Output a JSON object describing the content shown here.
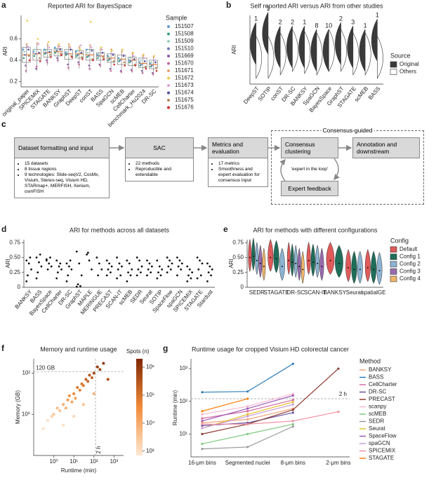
{
  "chart_data": [
    {
      "panel": "a",
      "type": "box",
      "title": "Reported ARI for BayesSpace",
      "ylabel": "ARI",
      "categories": [
        "original_paper",
        "SPICEMIX",
        "STAGATE",
        "BANKSY",
        "GraphST",
        "DeepST",
        "conST",
        "BASS",
        "SpaGCN",
        "scMEB",
        "CellCharter",
        "benchmark_Hu2024",
        "DR-SC"
      ],
      "boxes": {
        "min": [
          0.28,
          0.3,
          0.35,
          0.38,
          0.3,
          0.32,
          0.3,
          0.33,
          0.3,
          0.28,
          0.28,
          0.27,
          0.25
        ],
        "q1": [
          0.38,
          0.4,
          0.43,
          0.44,
          0.41,
          0.42,
          0.4,
          0.4,
          0.38,
          0.36,
          0.35,
          0.33,
          0.32
        ],
        "median": [
          0.45,
          0.46,
          0.47,
          0.48,
          0.46,
          0.46,
          0.45,
          0.44,
          0.42,
          0.41,
          0.4,
          0.37,
          0.36
        ],
        "q3": [
          0.52,
          0.5,
          0.5,
          0.51,
          0.5,
          0.49,
          0.5,
          0.47,
          0.46,
          0.45,
          0.43,
          0.42,
          0.4
        ],
        "max": [
          0.55,
          0.56,
          0.56,
          0.55,
          0.55,
          0.54,
          0.54,
          0.52,
          0.5,
          0.5,
          0.48,
          0.46,
          0.44
        ]
      },
      "legend_title": "Sample",
      "series": [
        {
          "name": "151507",
          "color": "#5b9bd5",
          "values": [
            0.5,
            0.48,
            0.5,
            0.52,
            0.47,
            0.48,
            0.5,
            0.45,
            0.44,
            0.42,
            0.4,
            0.38,
            0.37
          ]
        },
        {
          "name": "151508",
          "color": "#3aa17e",
          "values": [
            0.42,
            0.44,
            0.46,
            0.47,
            0.45,
            0.44,
            0.43,
            0.42,
            0.4,
            0.39,
            0.38,
            0.35,
            0.34
          ]
        },
        {
          "name": "151509",
          "color": "#9bd3c0",
          "values": [
            0.48,
            0.5,
            0.49,
            0.5,
            0.48,
            0.49,
            0.47,
            0.46,
            0.43,
            0.41,
            0.42,
            0.4,
            0.38
          ]
        },
        {
          "name": "151510",
          "color": "#6a7fb8",
          "values": [
            0.45,
            0.46,
            0.47,
            0.49,
            0.46,
            0.45,
            0.44,
            0.44,
            0.41,
            0.4,
            0.39,
            0.36,
            0.35
          ]
        },
        {
          "name": "151669",
          "color": "#8a5fa8",
          "values": [
            0.35,
            0.32,
            0.4,
            0.42,
            0.36,
            0.38,
            0.35,
            0.36,
            0.32,
            0.3,
            0.31,
            0.3,
            0.28
          ]
        },
        {
          "name": "151670",
          "color": "#c46a9a",
          "values": [
            0.3,
            0.34,
            0.38,
            0.4,
            0.33,
            0.36,
            0.32,
            0.35,
            0.3,
            0.29,
            0.3,
            0.28,
            0.27
          ]
        },
        {
          "name": "151671",
          "color": "#e8a36b",
          "values": [
            0.55,
            0.56,
            0.54,
            0.53,
            0.55,
            0.52,
            0.54,
            0.5,
            0.5,
            0.48,
            0.46,
            0.44,
            0.43
          ]
        },
        {
          "name": "151672",
          "color": "#f2c94c",
          "values": [
            0.77,
            0.6,
            0.57,
            0.55,
            0.53,
            0.5,
            0.76,
            0.52,
            0.49,
            0.5,
            0.47,
            0.45,
            0.44
          ]
        },
        {
          "name": "151673",
          "color": "#d9a3d9",
          "values": [
            0.53,
            0.55,
            0.52,
            0.53,
            0.52,
            0.54,
            0.52,
            0.5,
            0.46,
            0.45,
            0.44,
            0.42,
            0.4
          ]
        },
        {
          "name": "151674",
          "color": "#4f4f9e",
          "values": [
            0.5,
            0.47,
            0.48,
            0.5,
            0.5,
            0.47,
            0.49,
            0.47,
            0.45,
            0.44,
            0.41,
            0.39,
            0.38
          ]
        },
        {
          "name": "151675",
          "color": "#b58a5a",
          "values": [
            0.44,
            0.42,
            0.45,
            0.46,
            0.44,
            0.43,
            0.41,
            0.43,
            0.39,
            0.38,
            0.36,
            0.34,
            0.33
          ]
        },
        {
          "name": "151676",
          "color": "#d62d2d",
          "values": [
            0.4,
            0.39,
            0.43,
            0.45,
            0.43,
            0.41,
            0.4,
            0.41,
            0.36,
            0.35,
            0.35,
            0.32,
            0.3
          ]
        }
      ],
      "ylim": [
        0.15,
        0.82
      ],
      "yticks": [
        0.2,
        0.4,
        0.6
      ]
    },
    {
      "panel": "b",
      "type": "split-violin",
      "title": "Self reported ARI versus ARI from other studies",
      "ylabel": "ARI",
      "categories": [
        "DeepST",
        "SOTIP",
        "conST",
        "DR-SC",
        "BANKSY",
        "SpaGCN",
        "BayesSpace",
        "GraphST",
        "STAGATE",
        "scMEB",
        "BASS"
      ],
      "study_counts": [
        1,
        1,
        2,
        2,
        1,
        8,
        10,
        2,
        3,
        1,
        1
      ],
      "legend_title": "Source",
      "series": [
        {
          "name": "Original",
          "color": "#3a3a3a",
          "values": [
            0.55,
            0.7,
            0.5,
            0.5,
            0.5,
            0.45,
            0.45,
            0.55,
            0.5,
            0.45,
            0.6
          ]
        },
        {
          "name": "Others",
          "color": "#ffffff",
          "values": [
            0.35,
            0.35,
            0.4,
            0.45,
            0.42,
            0.4,
            0.45,
            0.45,
            0.4,
            0.4,
            0.35
          ]
        }
      ],
      "ylim": [
        0,
        1
      ]
    },
    {
      "panel": "d",
      "type": "strip",
      "title": "ARI for methods across all datasets",
      "ylabel": "ARI",
      "categories": [
        "BANKSY",
        "BASS",
        "BayesSpace",
        "CellCharter",
        "DR-SC",
        "GraphST",
        "MAPLE",
        "MERINGUE",
        "PRECAST",
        "SCAN-IT",
        "scMEB",
        "SEDR",
        "Seurat",
        "SOTIP",
        "SpaceFlow",
        "spaGCN",
        "SPICEMIX",
        "STAGATE",
        "Stardust"
      ],
      "values": [
        [
          0.45,
          0.4,
          0.3,
          0.2,
          0.5,
          0.1
        ],
        [
          0.5,
          0.42,
          0.35,
          0.25,
          0.55,
          0.15
        ],
        [
          0.45,
          0.4,
          0.35,
          0.3,
          0.5,
          0.47
        ],
        [
          0.45,
          0.35,
          0.3,
          0.25,
          0.4,
          0.15
        ],
        [
          0.4,
          0.35,
          0.3,
          0.2,
          0.45,
          0.1
        ],
        [
          0.6,
          0.4,
          0.2,
          0.05,
          0.02,
          0.01
        ],
        [
          0.55,
          0.45,
          0.3,
          0.58
        ],
        [
          0.5,
          0.4,
          0.3,
          0.2
        ],
        [
          0.45,
          0.4,
          0.35,
          0.3,
          0.25,
          0.2
        ],
        [
          0.5,
          0.4,
          0.35,
          0.3,
          0.2,
          0.15
        ],
        [
          0.45,
          0.4,
          0.3,
          0.25,
          0.2,
          0.1
        ],
        [
          0.5,
          0.45,
          0.35,
          0.3,
          0.25,
          0.2
        ],
        [
          0.45,
          0.4,
          0.35,
          0.3,
          0.25,
          0.2
        ],
        [
          0.45,
          0.35,
          0.3,
          0.25,
          0.2,
          0.15
        ],
        [
          0.5,
          0.45,
          0.4,
          0.35,
          0.3,
          0.25
        ],
        [
          0.5,
          0.45,
          0.4,
          0.35,
          0.3,
          0.2
        ],
        [
          0.35,
          0.3,
          0.25,
          0.2,
          0.15,
          0.1
        ],
        [
          0.5,
          0.45,
          0.4,
          0.3,
          0.2,
          0.15
        ],
        [
          0.4,
          0.35,
          0.3,
          0.25,
          0.2,
          0.1
        ]
      ],
      "ylim": [
        0,
        0.8
      ],
      "yticks": [
        0,
        0.25,
        {
          "value": 0.5,
          "label": "0.50"
        },
        0.75
      ]
    },
    {
      "panel": "e",
      "type": "violin",
      "title": "ARI for methods with different configurations",
      "ylabel": "ARI",
      "categories": [
        "SEDR",
        "STAGATE",
        "DR-SC",
        "SCAN-IT",
        "BANKSY",
        "Seurat",
        "spatialGE"
      ],
      "legend_title": "Config",
      "series": [
        {
          "name": "Default",
          "color": "#e05a5a",
          "values": [
            0.5,
            0.5,
            0.45,
            0.45,
            0.45,
            0.33,
            0.33
          ]
        },
        {
          "name": "Config 1",
          "color": "#1e6e5a",
          "values": [
            0.52,
            0.48,
            0.42,
            0.42,
            0.4,
            0.3,
            0.3
          ]
        },
        {
          "name": "Config 2",
          "color": "#8cb4d2",
          "values": [
            0.45,
            0.35,
            0.4,
            0.4,
            null,
            0.3,
            0.28
          ]
        },
        {
          "name": "Config 3",
          "color": "#9a6bb0",
          "values": [
            0.4,
            null,
            0.35,
            0.35,
            null,
            null,
            null
          ]
        },
        {
          "name": "Config 4",
          "color": "#f2b66b",
          "values": [
            0.35,
            null,
            0.3,
            null,
            null,
            null,
            null
          ]
        }
      ],
      "ylim": [
        0,
        0.8
      ],
      "yticks": [
        0,
        0.25,
        {
          "value": 0.5,
          "label": "0.50"
        },
        0.75
      ]
    },
    {
      "panel": "f",
      "type": "scatter",
      "title": "Memory and runtime usage",
      "xlabel": "Runtime (min)",
      "ylabel": "Memory (GB)",
      "x": [
        0.5,
        0.8,
        1,
        1.5,
        2,
        3,
        4,
        5,
        6,
        8,
        10,
        12,
        15,
        20,
        25,
        30,
        40,
        50,
        60,
        80,
        100,
        150,
        200,
        300,
        500,
        3,
        10,
        30,
        100,
        0.3
      ],
      "y": [
        0.5,
        0.8,
        1,
        2,
        1.5,
        3,
        2,
        5,
        8,
        4,
        10,
        6,
        20,
        15,
        30,
        25,
        50,
        40,
        80,
        60,
        100,
        200,
        150,
        300,
        50,
        0.3,
        0.8,
        3,
        10,
        0.2
      ],
      "spots": [
        1000,
        2000,
        3000,
        5000,
        4000,
        10000,
        8000,
        20000,
        30000,
        15000,
        50000,
        20000,
        80000,
        60000,
        100000,
        70000,
        200000,
        150000,
        300000,
        200000,
        500000,
        800000,
        600000,
        1000000,
        400000,
        1000,
        1500,
        4000,
        8000,
        1000
      ],
      "xscale": "log",
      "yscale": "log",
      "xlim": [
        0.1,
        3000
      ],
      "ylim": [
        0.01,
        500
      ],
      "xticks": [
        {
          "value": 1,
          "label": "10⁰"
        },
        {
          "value": 10,
          "label": "10¹"
        },
        {
          "value": 100,
          "label": "10²"
        },
        {
          "value": 1000,
          "label": "10³"
        }
      ],
      "yticks": [
        {
          "value": 1,
          "label": "10⁰"
        },
        {
          "value": 100,
          "label": "10²"
        }
      ],
      "hlines": [
        {
          "value": 120,
          "label": "120 GB"
        }
      ],
      "vlines": [
        {
          "value": 120,
          "label": "2 h"
        }
      ],
      "colorbar_title": "Spots (n)",
      "colorbar_colors": [
        "#fde8d2",
        "#f28c3a",
        "#7f2704"
      ],
      "colorbar_lim": [
        700,
        2000000
      ],
      "colorbar_ticks": [
        {
          "value": 1000,
          "label": "10³"
        },
        {
          "value": 10000,
          "label": "10⁴"
        },
        {
          "value": 100000,
          "label": "10⁵"
        },
        {
          "value": 1000000,
          "label": "10⁶"
        }
      ]
    },
    {
      "panel": "g",
      "type": "line",
      "title": "Runtime usage for cropped Visium HD colorectal cancer",
      "ylabel": "Runtime (min)",
      "categories": [
        "16-μm bins",
        "Segmented nuclei",
        "8-μm bins",
        "2-μm bins"
      ],
      "legend_title": "Method",
      "series": [
        {
          "name": "BANKSY",
          "color": "#f2a37c",
          "values": [
            22,
            28,
            60,
            null
          ]
        },
        {
          "name": "BASS",
          "color": "#2b7bba",
          "values": [
            190,
            200,
            1400,
            null
          ]
        },
        {
          "name": "CellCharter",
          "color": "#d46aa4",
          "values": [
            30,
            50,
            110,
            null
          ]
        },
        {
          "name": "DR-SC",
          "color": "#6a51a3",
          "values": [
            18,
            22,
            45,
            null
          ]
        },
        {
          "name": "PRECAST",
          "color": "#8c3b2e",
          "values": [
            10,
            20,
            55,
            1000
          ]
        },
        {
          "name": "scanpy",
          "color": "#f7b6d2",
          "values": [
            40,
            70,
            170,
            null
          ]
        },
        {
          "name": "scMEB",
          "color": "#7fc97f",
          "values": [
            5,
            10,
            20,
            null
          ]
        },
        {
          "name": "SEDR",
          "color": "#999999",
          "values": [
            3.5,
            4,
            17,
            null
          ]
        },
        {
          "name": "Seurat",
          "color": "#e6c229",
          "values": [
            15,
            40,
            95,
            null
          ]
        },
        {
          "name": "SpaceFlow",
          "color": "#9b59b6",
          "values": [
            25,
            60,
            150,
            null
          ]
        },
        {
          "name": "spaGCN",
          "color": "#c9a0dc",
          "values": [
            15,
            35,
            80,
            null
          ]
        },
        {
          "name": "SPICEMIX",
          "color": "#f08fa0",
          "values": [
            20,
            20,
            25,
            48
          ]
        },
        {
          "name": "STAGATE",
          "color": "#ff7f0e",
          "values": [
            50,
            120,
            null,
            null
          ]
        }
      ],
      "yscale": "log",
      "ylim": [
        2,
        2000
      ],
      "yticks": [
        {
          "value": 10,
          "label": "10¹"
        },
        {
          "value": 100,
          "label": "10²"
        },
        {
          "value": 1000,
          "label": "10³"
        }
      ],
      "hlines": [
        {
          "value": 120,
          "label": "2 h"
        }
      ]
    }
  ],
  "diagram": {
    "panel": "c",
    "group_label": "Consensus-guided",
    "loop_label": "'expert in the loop'",
    "nodes": [
      {
        "title": "Dataset formatting and input",
        "bullets": [
          "15 datasets",
          "8 tissue regions",
          "9 technologies: Slide-seqV2, CosMx, Visium, Stereo-seq, Visium HD, STARmap+, MERFISH, Xenium, osmFISH"
        ]
      },
      {
        "title": "SAC",
        "bullets": [
          "22 methods",
          "Reproducible and extendable"
        ]
      },
      {
        "title": "Metrics and evaluation",
        "bullets": [
          "17 metrics",
          "Smoothness and expert evaluation for consensus input"
        ]
      },
      {
        "title": "Consensus clustering"
      },
      {
        "title": "Annotation and downstream"
      },
      {
        "title": "Expert feedback"
      }
    ]
  }
}
